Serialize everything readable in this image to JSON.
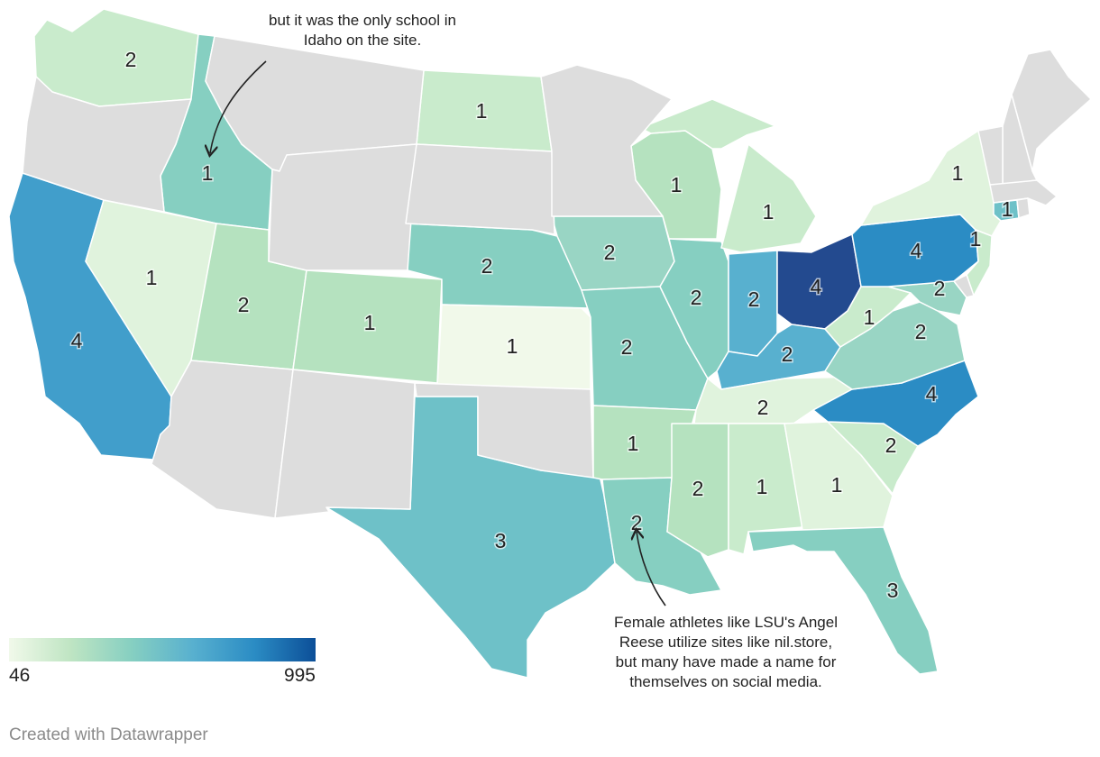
{
  "annotations": {
    "idaho": {
      "line1": "but it was the only school in",
      "line2": "Idaho on the site."
    },
    "louisiana": {
      "line1": "Female athletes like LSU's Angel",
      "line2": "Reese utilize sites like nil.store,",
      "line3": "but many have made a name for",
      "line4": "themselves on social media."
    }
  },
  "legend": {
    "min": "46",
    "max": "995"
  },
  "credit": "Created with Datawrapper",
  "colors": {
    "no_data": "#dddddd",
    "c1": "#f1f9ea",
    "c2": "#e0f3dd",
    "c3": "#c9ebcc",
    "c4": "#b5e2bf",
    "c5": "#99d5c4",
    "c6": "#86cfc1",
    "c7": "#6ec1c8",
    "c8": "#58b0cf",
    "c9": "#419ecb",
    "c10": "#2b8cc4",
    "c11": "#234a8f"
  },
  "states": [
    {
      "name": "Washington",
      "label": "2",
      "color": "c3"
    },
    {
      "name": "Idaho",
      "label": "1",
      "color": "c6"
    },
    {
      "name": "California",
      "label": "4",
      "color": "c9"
    },
    {
      "name": "Nevada",
      "label": "1",
      "color": "c2"
    },
    {
      "name": "Utah",
      "label": "2",
      "color": "c4"
    },
    {
      "name": "Colorado",
      "label": "1",
      "color": "c4"
    },
    {
      "name": "North Dakota",
      "label": "1",
      "color": "c3"
    },
    {
      "name": "Nebraska",
      "label": "2",
      "color": "c6"
    },
    {
      "name": "Kansas",
      "label": "1",
      "color": "c1"
    },
    {
      "name": "Texas",
      "label": "3",
      "color": "c7"
    },
    {
      "name": "Iowa",
      "label": "2",
      "color": "c5"
    },
    {
      "name": "Missouri",
      "label": "2",
      "color": "c6"
    },
    {
      "name": "Arkansas",
      "label": "1",
      "color": "c4"
    },
    {
      "name": "Louisiana",
      "label": "2",
      "color": "c6"
    },
    {
      "name": "Wisconsin",
      "label": "1",
      "color": "c4"
    },
    {
      "name": "Illinois",
      "label": "2",
      "color": "c6"
    },
    {
      "name": "Michigan",
      "label": "1",
      "color": "c3"
    },
    {
      "name": "Indiana",
      "label": "2",
      "color": "c8"
    },
    {
      "name": "Ohio",
      "label": "4",
      "color": "c11"
    },
    {
      "name": "Kentucky",
      "label": "2",
      "color": "c8"
    },
    {
      "name": "Tennessee",
      "label": "2",
      "color": "c2"
    },
    {
      "name": "Mississippi",
      "label": "2",
      "color": "c4"
    },
    {
      "name": "Alabama",
      "label": "1",
      "color": "c3"
    },
    {
      "name": "Georgia",
      "label": "1",
      "color": "c2"
    },
    {
      "name": "Florida",
      "label": "3",
      "color": "c6"
    },
    {
      "name": "South Carolina",
      "label": "2",
      "color": "c3"
    },
    {
      "name": "North Carolina",
      "label": "4",
      "color": "c10"
    },
    {
      "name": "Virginia",
      "label": "2",
      "color": "c5"
    },
    {
      "name": "West Virginia",
      "label": "1",
      "color": "c3"
    },
    {
      "name": "Maryland",
      "label": "2",
      "color": "c5"
    },
    {
      "name": "Pennsylvania",
      "label": "4",
      "color": "c10"
    },
    {
      "name": "New York",
      "label": "1",
      "color": "c2"
    },
    {
      "name": "New Jersey",
      "label": "1",
      "color": "c3"
    },
    {
      "name": "Connecticut",
      "label": "1",
      "color": "c7"
    },
    {
      "name": "Oregon",
      "label": "",
      "color": "no_data"
    },
    {
      "name": "Montana",
      "label": "",
      "color": "no_data"
    },
    {
      "name": "Wyoming",
      "label": "",
      "color": "no_data"
    },
    {
      "name": "South Dakota",
      "label": "",
      "color": "no_data"
    },
    {
      "name": "Minnesota",
      "label": "",
      "color": "no_data"
    },
    {
      "name": "Arizona",
      "label": "",
      "color": "no_data"
    },
    {
      "name": "New Mexico",
      "label": "",
      "color": "no_data"
    },
    {
      "name": "Oklahoma",
      "label": "",
      "color": "no_data"
    },
    {
      "name": "Maine",
      "label": "",
      "color": "no_data"
    },
    {
      "name": "New Hampshire",
      "label": "",
      "color": "no_data"
    },
    {
      "name": "Vermont",
      "label": "",
      "color": "no_data"
    },
    {
      "name": "Massachusetts",
      "label": "",
      "color": "no_data"
    },
    {
      "name": "Rhode Island",
      "label": "",
      "color": "no_data"
    },
    {
      "name": "Delaware",
      "label": "",
      "color": "no_data"
    }
  ]
}
